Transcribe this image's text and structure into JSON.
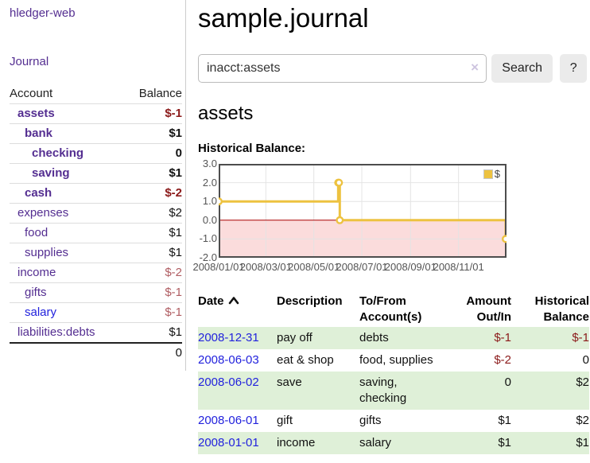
{
  "colors": {
    "link_purple": "#542e91",
    "link_blue": "#2222dd",
    "negative_strong": "#8b1a1a",
    "negative_muted": "#b05d62",
    "row_green": "#dff0d8",
    "chart_gold": "#edc240",
    "chart_negative_region": "#fbdcdc",
    "chart_zero_line": "#aa0000"
  },
  "sidebar": {
    "app_title": "hledger-web",
    "journal_label": "Journal",
    "accounts_table": {
      "account_header": "Account",
      "balance_header": "Balance",
      "rows": [
        {
          "name": "assets",
          "depth": 1,
          "bold": true,
          "link": "purple",
          "balance": "$-1",
          "balance_style": "neg-strong"
        },
        {
          "name": "bank",
          "depth": 2,
          "bold": true,
          "link": "purple",
          "balance": "$1",
          "balance_style": ""
        },
        {
          "name": "checking",
          "depth": 3,
          "bold": true,
          "link": "purple",
          "balance": "0",
          "balance_style": ""
        },
        {
          "name": "saving",
          "depth": 3,
          "bold": true,
          "link": "purple",
          "balance": "$1",
          "balance_style": ""
        },
        {
          "name": "cash",
          "depth": 2,
          "bold": true,
          "link": "purple",
          "balance": "$-2",
          "balance_style": "neg-strong"
        },
        {
          "name": "expenses",
          "depth": 1,
          "bold": false,
          "link": "purple",
          "balance": "$2",
          "balance_style": ""
        },
        {
          "name": "food",
          "depth": 2,
          "bold": false,
          "link": "purple",
          "balance": "$1",
          "balance_style": ""
        },
        {
          "name": "supplies",
          "depth": 2,
          "bold": false,
          "link": "purple",
          "balance": "$1",
          "balance_style": ""
        },
        {
          "name": "income",
          "depth": 1,
          "bold": false,
          "link": "purple",
          "balance": "$-2",
          "balance_style": "neg-muted"
        },
        {
          "name": "gifts",
          "depth": 2,
          "bold": false,
          "link": "purple",
          "balance": "$-1",
          "balance_style": "neg-muted"
        },
        {
          "name": "salary",
          "depth": 2,
          "bold": false,
          "link": "blue",
          "balance": "$-1",
          "balance_style": "neg-muted"
        },
        {
          "name": "liabilities:debts",
          "depth": 1,
          "bold": false,
          "link": "purple",
          "balance": "$1",
          "balance_style": ""
        }
      ],
      "total": "0"
    }
  },
  "main": {
    "page_title": "sample.journal",
    "search": {
      "value": "inacct:assets",
      "clear_label": "×",
      "search_button": "Search",
      "help_button": "?"
    },
    "account_heading": "assets",
    "chart_label": "Historical Balance:"
  },
  "chart_data": {
    "type": "line",
    "subtype": "step",
    "title": "Historical Balance",
    "series": [
      {
        "name": "$",
        "points": [
          [
            "2008-01-01",
            1
          ],
          [
            "2008-06-01",
            2
          ],
          [
            "2008-06-02",
            2
          ],
          [
            "2008-06-03",
            0
          ],
          [
            "2008-12-31",
            -1
          ]
        ]
      }
    ],
    "x_range": [
      "2008-01-01",
      "2009-01-01"
    ],
    "x_ticks": [
      "2008/01/01",
      "2008/03/01",
      "2008/05/01",
      "2008/07/01",
      "2008/09/01",
      "2008/11/01"
    ],
    "y_ticks": [
      3.0,
      2.0,
      1.0,
      0.0,
      -1.0,
      -2.0
    ],
    "ylim": [
      -2,
      3
    ],
    "grid": true,
    "legend_position": "top-right",
    "negative_region_shaded": true
  },
  "table": {
    "columns": [
      "Date",
      "Description",
      "To/From Account(s)",
      "Amount Out/In",
      "Historical Balance"
    ],
    "sort_column": "Date",
    "sort_direction": "up",
    "rows": [
      {
        "date": "2008-12-31",
        "description": "pay off",
        "accounts": [
          "debts"
        ],
        "amount": "$-1",
        "amount_negative": true,
        "balance": "$-1",
        "balance_negative": true
      },
      {
        "date": "2008-06-03",
        "description": "eat & shop",
        "accounts": [
          "food",
          "supplies"
        ],
        "amount": "$-2",
        "amount_negative": true,
        "balance": "0",
        "balance_negative": false
      },
      {
        "date": "2008-06-02",
        "description": "save",
        "accounts": [
          "saving",
          "checking"
        ],
        "amount": "0",
        "amount_negative": false,
        "balance": "$2",
        "balance_negative": false
      },
      {
        "date": "2008-06-01",
        "description": "gift",
        "accounts": [
          "gifts"
        ],
        "amount": "$1",
        "amount_negative": false,
        "balance": "$2",
        "balance_negative": false
      },
      {
        "date": "2008-01-01",
        "description": "income",
        "accounts": [
          "salary"
        ],
        "amount": "$1",
        "amount_negative": false,
        "balance": "$1",
        "balance_negative": false
      }
    ]
  }
}
